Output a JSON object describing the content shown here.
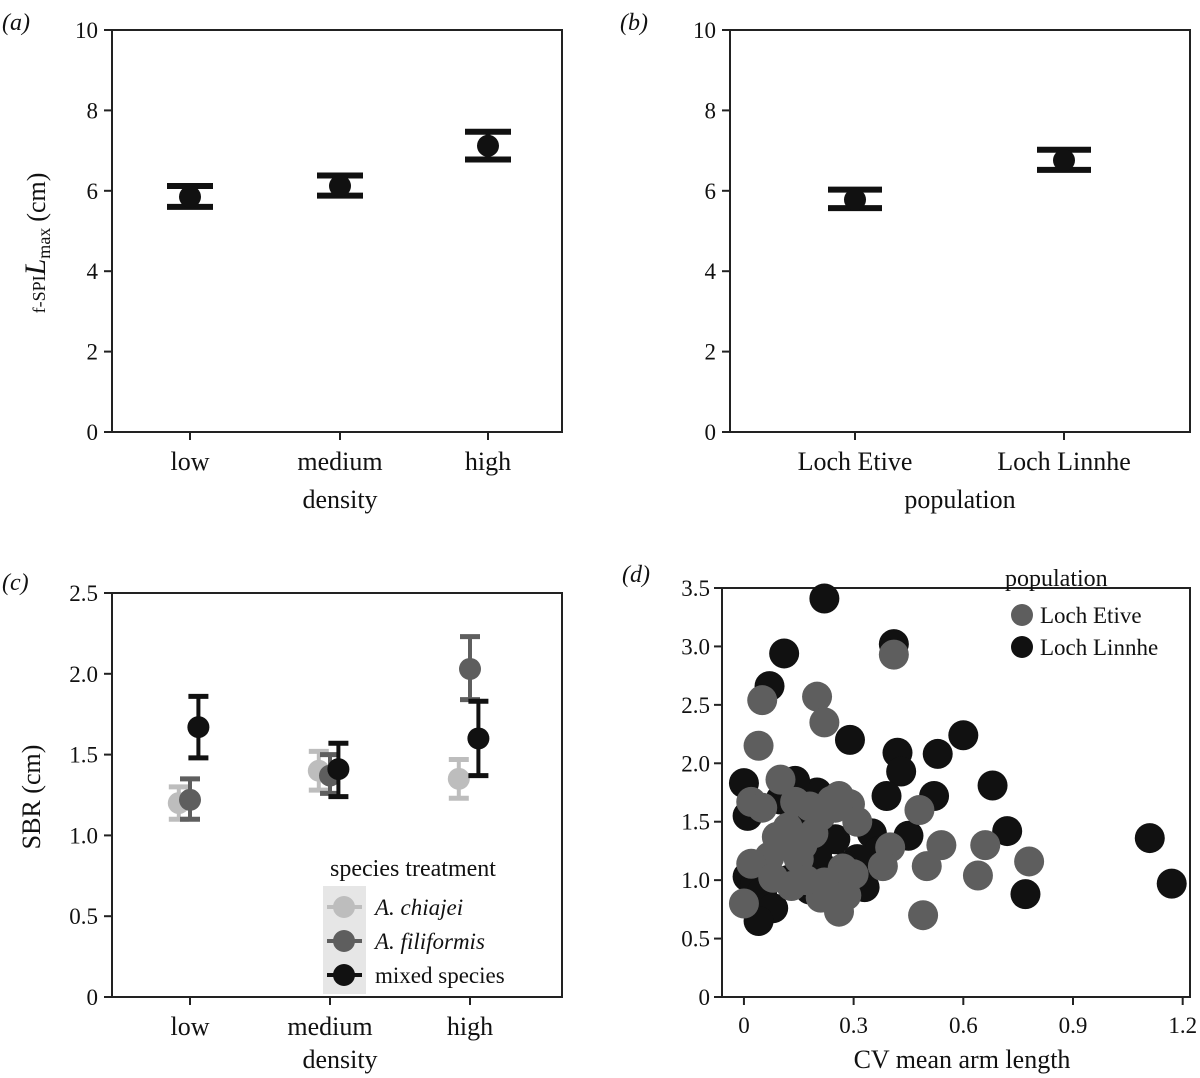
{
  "chart_data": [
    {
      "panel": "(a)",
      "type": "errorbar",
      "categories": [
        "low",
        "medium",
        "high"
      ],
      "values": [
        5.85,
        6.12,
        7.12
      ],
      "error_low": [
        5.6,
        5.88,
        6.78
      ],
      "error_high": [
        6.12,
        6.38,
        7.47
      ],
      "ylim": [
        0,
        10
      ],
      "yticks": [
        "0",
        "2",
        "4",
        "6",
        "8",
        "10"
      ],
      "xlabel": "density",
      "ylabel_prefix": "f-SPI",
      "ylabel_main": "L",
      "ylabel_sub": "max",
      "ylabel_unit": "(cm)",
      "color": "#111111"
    },
    {
      "panel": "(b)",
      "type": "errorbar",
      "categories": [
        "Loch Etive",
        "Loch Linnhe"
      ],
      "values": [
        5.78,
        6.76
      ],
      "error_low": [
        5.57,
        6.52
      ],
      "error_high": [
        6.03,
        7.02
      ],
      "ylim": [
        0,
        10
      ],
      "yticks": [
        "0",
        "2",
        "4",
        "6",
        "8",
        "10"
      ],
      "xlabel": "population",
      "color": "#111111"
    },
    {
      "panel": "(c)",
      "type": "errorbar",
      "categories": [
        "low",
        "medium",
        "high"
      ],
      "ylim": [
        0,
        2.5
      ],
      "yticks": [
        "0",
        "0.5",
        "1.0",
        "1.5",
        "2.0",
        "2.5"
      ],
      "xlabel": "density",
      "ylabel": "SBR (cm)",
      "legend_title": "species treatment",
      "series": [
        {
          "name": "A. chiajei",
          "italic": true,
          "color": "#bdbdbd",
          "offset": -0.08,
          "values": [
            1.2,
            1.4,
            1.35
          ],
          "error_low": [
            1.1,
            1.28,
            1.23
          ],
          "error_high": [
            1.3,
            1.52,
            1.47
          ]
        },
        {
          "name": "A. filiformis",
          "italic": true,
          "color": "#5e5e5e",
          "offset": 0,
          "values": [
            1.22,
            1.37,
            2.03
          ],
          "error_low": [
            1.1,
            1.26,
            1.84
          ],
          "error_high": [
            1.35,
            1.5,
            2.23
          ]
        },
        {
          "name": "mixed species",
          "italic": false,
          "color": "#111111",
          "offset": 0.06,
          "values": [
            1.67,
            1.41,
            1.6
          ],
          "error_low": [
            1.48,
            1.24,
            1.37
          ],
          "error_high": [
            1.86,
            1.57,
            1.83
          ]
        }
      ]
    },
    {
      "panel": "(d)",
      "type": "scatter",
      "xlim": [
        -0.06,
        1.22
      ],
      "ylim": [
        0,
        3.5
      ],
      "xticks": [
        "0",
        "0.3",
        "0.6",
        "0.9",
        "1.2"
      ],
      "yticks": [
        "0",
        "0.5",
        "1.0",
        "1.5",
        "2.0",
        "2.5",
        "3.0",
        "3.5"
      ],
      "xlabel": "CV mean arm length",
      "legend_title": "population",
      "series": [
        {
          "name": "Loch Linnhe",
          "color": "#111111",
          "x": [
            0.22,
            0.41,
            0.11,
            0.07,
            0.29,
            0.6,
            0.42,
            0.53,
            0.0,
            0.01,
            0.43,
            0.68,
            0.39,
            0.2,
            0.1,
            0.14,
            0.35,
            0.25,
            0.72,
            0.45,
            0.52,
            0.37,
            0.31,
            0.01,
            0.03,
            0.05,
            0.12,
            0.18,
            0.28,
            0.08,
            0.15,
            0.23,
            0.32,
            0.2,
            0.27,
            0.33,
            0.04,
            0.77,
            1.11,
            1.17,
            0.13,
            0.06,
            0.26
          ],
          "y": [
            3.41,
            3.02,
            2.94,
            2.66,
            2.2,
            2.24,
            2.09,
            2.08,
            1.83,
            1.55,
            1.93,
            1.81,
            1.72,
            1.75,
            1.69,
            1.85,
            1.4,
            1.35,
            1.42,
            1.38,
            1.72,
            1.25,
            1.18,
            1.03,
            0.96,
            0.9,
            1.0,
            0.92,
            1.12,
            0.76,
            0.98,
            1.08,
            0.98,
            1.22,
            0.85,
            0.94,
            0.65,
            0.88,
            1.36,
            0.97,
            1.47,
            1.1,
            0.87
          ]
        },
        {
          "name": "Loch Etive",
          "color": "#5e5e5e",
          "x": [
            0.41,
            0.05,
            0.2,
            0.22,
            0.04,
            0.26,
            0.02,
            0.1,
            0.14,
            0.05,
            0.18,
            0.21,
            0.24,
            0.25,
            0.29,
            0.31,
            0.09,
            0.12,
            0.16,
            0.19,
            0.07,
            0.11,
            0.15,
            0.02,
            0.22,
            0.27,
            0.3,
            0.4,
            0.38,
            0.48,
            0.54,
            0.5,
            0.66,
            0.64,
            0.78,
            0.49,
            0.26,
            0.28,
            0.21,
            0.17,
            0.08,
            0.13,
            0.0
          ],
          "y": [
            2.93,
            2.54,
            2.57,
            2.35,
            2.15,
            1.72,
            1.67,
            1.86,
            1.67,
            1.62,
            1.63,
            1.55,
            1.68,
            1.62,
            1.65,
            1.5,
            1.37,
            1.45,
            1.3,
            1.4,
            1.2,
            1.3,
            1.18,
            1.14,
            0.98,
            1.1,
            1.05,
            1.28,
            1.12,
            1.6,
            1.3,
            1.12,
            1.3,
            1.04,
            1.16,
            0.7,
            0.73,
            0.87,
            0.85,
            1.0,
            1.02,
            0.95,
            0.8
          ]
        }
      ]
    }
  ]
}
